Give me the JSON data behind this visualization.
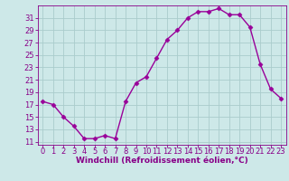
{
  "x": [
    0,
    1,
    2,
    3,
    4,
    5,
    6,
    7,
    8,
    9,
    10,
    11,
    12,
    13,
    14,
    15,
    16,
    17,
    18,
    19,
    20,
    21,
    22,
    23
  ],
  "y": [
    17.5,
    17.0,
    15.0,
    13.5,
    11.5,
    11.5,
    12.0,
    11.5,
    17.5,
    20.5,
    21.5,
    24.5,
    27.5,
    29.0,
    31.0,
    32.0,
    32.0,
    32.5,
    31.5,
    31.5,
    29.5,
    23.5,
    19.5,
    18.0
  ],
  "line_color": "#990099",
  "marker": "D",
  "marker_size": 2.5,
  "bg_color": "#cde8e8",
  "grid_color": "#aacccc",
  "xlabel": "Windchill (Refroidissement éolien,°C)",
  "ylabel": "",
  "xlim": [
    -0.5,
    23.5
  ],
  "ylim": [
    10.5,
    33.0
  ],
  "yticks": [
    11,
    13,
    15,
    17,
    19,
    21,
    23,
    25,
    27,
    29,
    31
  ],
  "xticks": [
    0,
    1,
    2,
    3,
    4,
    5,
    6,
    7,
    8,
    9,
    10,
    11,
    12,
    13,
    14,
    15,
    16,
    17,
    18,
    19,
    20,
    21,
    22,
    23
  ],
  "tick_color": "#880088",
  "label_color": "#880088",
  "label_fontsize": 6.5,
  "tick_fontsize": 6.0,
  "linewidth": 1.0
}
